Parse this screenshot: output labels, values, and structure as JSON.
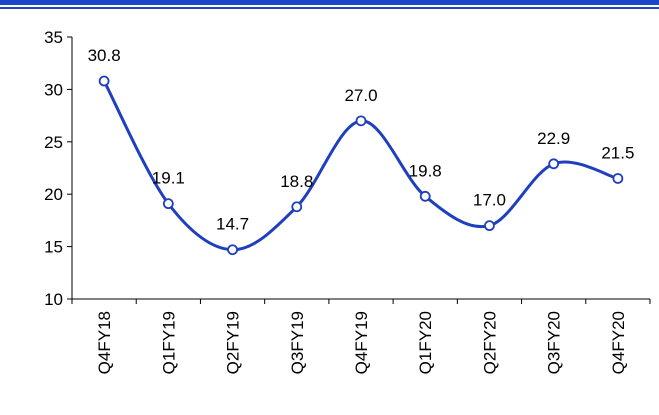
{
  "chart_data": {
    "type": "line",
    "title": "",
    "xlabel": "",
    "ylabel": "",
    "categories": [
      "Q4FY18",
      "Q1FY19",
      "Q2FY19",
      "Q3FY19",
      "Q4FY19",
      "Q1FY20",
      "Q2FY20",
      "Q3FY20",
      "Q4FY20"
    ],
    "series": [
      {
        "values": [
          30.8,
          19.1,
          14.7,
          18.8,
          27.0,
          19.8,
          17.0,
          22.9,
          21.5
        ],
        "labels": [
          "30.8",
          "19.1",
          "14.7",
          "18.8",
          "27.0",
          "19.8",
          "17.0",
          "22.9",
          "21.5"
        ]
      }
    ],
    "ylim": [
      10,
      35
    ],
    "yticks": [
      "10",
      "15",
      "20",
      "25",
      "30",
      "35"
    ],
    "grid": false,
    "legend": "none",
    "smooth": true,
    "marker": "circle"
  },
  "colors": {
    "line": "#1f3fbf",
    "header_rule": "#1a47c8",
    "axis": "#000000"
  }
}
